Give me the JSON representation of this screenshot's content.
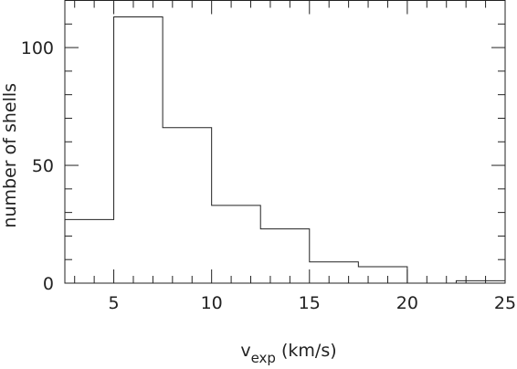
{
  "chart_data": {
    "type": "bar",
    "style": "step-histogram",
    "title": "",
    "xlabel": "v",
    "xlabel_subscript": "exp",
    "xlabel_units": " (km/s)",
    "ylabel": "number of shells",
    "xlim": [
      2.5,
      25
    ],
    "ylim": [
      0,
      120
    ],
    "bin_edges": [
      2.5,
      5,
      7.5,
      10,
      12.5,
      15,
      17.5,
      20,
      22.5,
      25
    ],
    "values": [
      27,
      113,
      66,
      33,
      23,
      9,
      7,
      0,
      1
    ],
    "x_ticks": [
      5,
      10,
      15,
      20,
      25
    ],
    "x_tick_labels": [
      "5",
      "10",
      "15",
      "20",
      "25"
    ],
    "y_ticks": [
      0,
      50,
      100
    ],
    "y_tick_labels": [
      "0",
      "50",
      "100"
    ],
    "grid": false,
    "legend": "none"
  }
}
